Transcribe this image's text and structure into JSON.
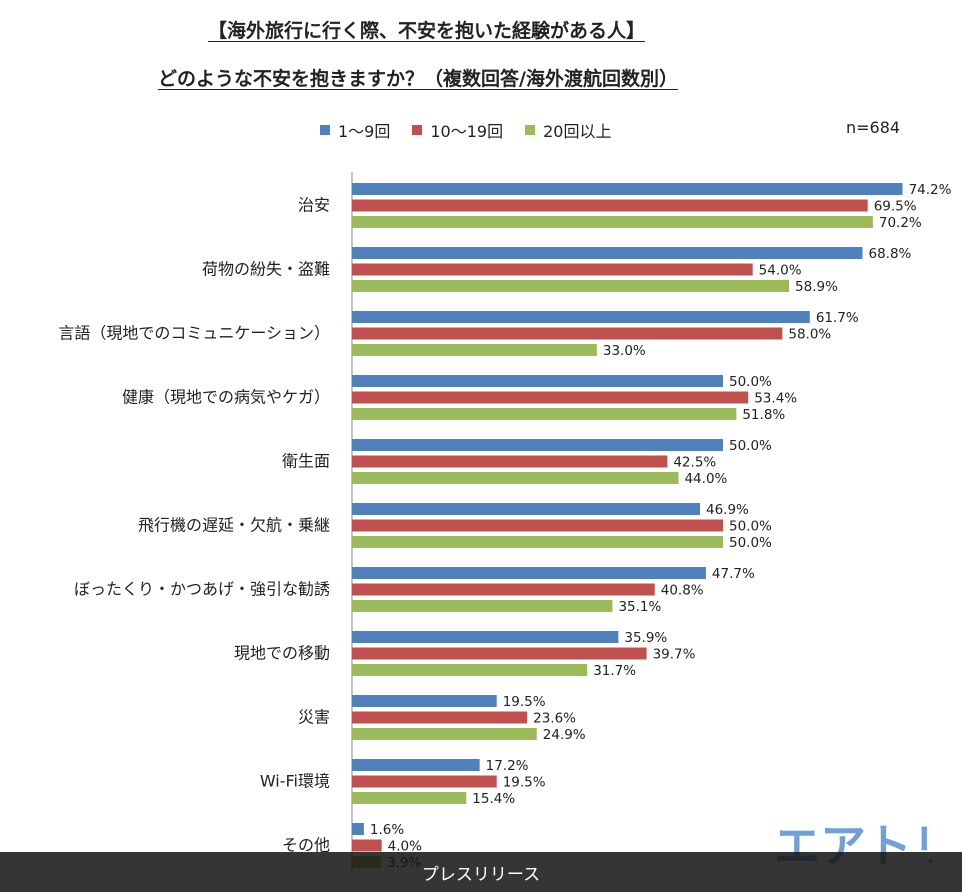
{
  "titles": {
    "line1": "【海外旅行に行く際、不安を抱いた経験がある人】",
    "line2": "どのような不安を抱きますか？（複数回答/海外渡航回数別）"
  },
  "n_label": "n=684",
  "footer_label": "プレスリリース",
  "logo_text": "エアトリ",
  "colors": {
    "series1": "#4f81bd",
    "series2": "#c0504d",
    "series3": "#9bbb59",
    "logo": "#6fa0d8"
  },
  "chart_data": {
    "type": "bar",
    "orientation": "horizontal",
    "categories": [
      "治安",
      "荷物の紛失・盗難",
      "言語（現地でのコミュニケーション）",
      "健康（現地での病気やケガ）",
      "衛生面",
      "飛行機の遅延・欠航・乗継",
      "ぼったくり・かつあげ・強引な勧誘",
      "現地での移動",
      "災害",
      "Wi-Fi環境",
      "その他"
    ],
    "series": [
      {
        "name": "1～9回",
        "values": [
          74.2,
          68.8,
          61.7,
          50.0,
          50.0,
          46.9,
          47.7,
          35.9,
          19.5,
          17.2,
          1.6
        ]
      },
      {
        "name": "10～19回",
        "values": [
          69.5,
          54.0,
          58.0,
          53.4,
          42.5,
          50.0,
          40.8,
          39.7,
          23.6,
          19.5,
          4.0
        ]
      },
      {
        "name": "20回以上",
        "values": [
          70.2,
          58.9,
          33.0,
          51.8,
          44.0,
          50.0,
          35.1,
          31.7,
          24.9,
          15.4,
          3.9
        ]
      }
    ],
    "value_suffix": "%",
    "xlim": [
      0,
      80
    ],
    "grid": false,
    "legend_position": "top"
  }
}
